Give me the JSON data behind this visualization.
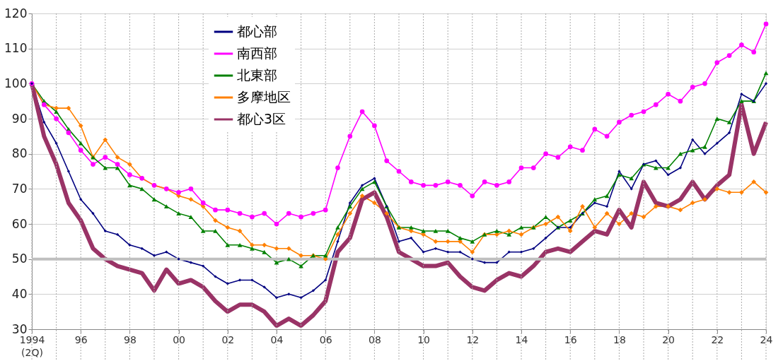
{
  "chart_data": {
    "type": "line",
    "x": [
      1994,
      1994.5,
      1995,
      1995.5,
      1996,
      1996.5,
      1997,
      1997.5,
      1998,
      1998.5,
      1999,
      1999.5,
      2000,
      2000.5,
      2001,
      2001.5,
      2002,
      2002.5,
      2003,
      2003.5,
      2004,
      2004.5,
      2005,
      2005.5,
      2006,
      2006.5,
      2007,
      2007.5,
      2008,
      2008.5,
      2009,
      2009.5,
      2010,
      2010.5,
      2011,
      2011.5,
      2012,
      2012.5,
      2013,
      2013.5,
      2014,
      2014.5,
      2015,
      2015.5,
      2016,
      2016.5,
      2017,
      2017.5,
      2018,
      2018.5,
      2019,
      2019.5,
      2020,
      2020.5,
      2021,
      2021.5,
      2022,
      2022.5,
      2023,
      2023.5,
      2024
    ],
    "series": [
      {
        "name": "都心部",
        "color": "#000080",
        "marker": "diamond",
        "values": [
          100,
          89,
          83,
          75,
          67,
          63,
          58,
          57,
          54,
          53,
          51,
          52,
          50,
          49,
          48,
          45,
          43,
          44,
          44,
          42,
          39,
          40,
          39,
          41,
          44,
          55,
          66,
          71,
          73,
          65,
          55,
          56,
          52,
          53,
          52,
          52,
          50,
          49,
          49,
          52,
          52,
          53,
          56,
          59,
          59,
          63,
          66,
          65,
          75,
          70,
          77,
          78,
          74,
          76,
          84,
          80,
          83,
          86,
          97,
          95,
          100
        ]
      },
      {
        "name": "南西部",
        "color": "#ff00ff",
        "marker": "circle",
        "values": [
          100,
          94,
          90,
          86,
          81,
          77,
          79,
          77,
          74,
          73,
          71,
          70,
          69,
          70,
          66,
          64,
          64,
          63,
          62,
          63,
          60,
          63,
          62,
          63,
          64,
          76,
          85,
          92,
          88,
          78,
          75,
          72,
          71,
          71,
          72,
          71,
          68,
          72,
          71,
          72,
          76,
          76,
          80,
          79,
          82,
          81,
          87,
          85,
          89,
          91,
          92,
          94,
          97,
          95,
          99,
          100,
          106,
          108,
          111,
          109,
          117
        ]
      },
      {
        "name": "北東部",
        "color": "#008000",
        "marker": "triangle",
        "values": [
          100,
          95,
          92,
          87,
          83,
          79,
          76,
          76,
          71,
          70,
          67,
          65,
          63,
          62,
          58,
          58,
          54,
          54,
          53,
          52,
          49,
          50,
          48,
          51,
          51,
          59,
          65,
          70,
          72,
          65,
          59,
          59,
          58,
          58,
          58,
          56,
          55,
          57,
          58,
          57,
          59,
          59,
          62,
          59,
          61,
          63,
          67,
          68,
          74,
          73,
          77,
          76,
          76,
          80,
          81,
          82,
          90,
          89,
          95,
          95,
          103
        ]
      },
      {
        "name": "多摩地区",
        "color": "#ff8000",
        "marker": "diamond",
        "values": [
          100,
          94,
          93,
          93,
          88,
          79,
          84,
          79,
          77,
          73,
          71,
          70,
          68,
          67,
          65,
          61,
          59,
          58,
          54,
          54,
          53,
          53,
          51,
          51,
          50,
          57,
          63,
          68,
          66,
          63,
          59,
          58,
          57,
          55,
          55,
          55,
          52,
          57,
          57,
          58,
          57,
          59,
          60,
          62,
          58,
          65,
          59,
          63,
          60,
          63,
          62,
          65,
          65,
          64,
          66,
          67,
          70,
          69,
          69,
          72,
          69
        ]
      },
      {
        "name": "都心3区",
        "color": "#993366",
        "marker": "none",
        "values": [
          100,
          85,
          77,
          66,
          61,
          53,
          50,
          48,
          47,
          46,
          41,
          47,
          43,
          44,
          42,
          38,
          35,
          37,
          37,
          35,
          31,
          33,
          31,
          34,
          38,
          52,
          56,
          67,
          69,
          62,
          52,
          50,
          48,
          48,
          49,
          45,
          42,
          41,
          44,
          46,
          45,
          48,
          52,
          53,
          52,
          55,
          58,
          57,
          64,
          59,
          72,
          66,
          65,
          67,
          72,
          67,
          71,
          74,
          94,
          80,
          89
        ]
      }
    ],
    "xlim": [
      1994,
      2024
    ],
    "xticks": [
      {
        "value": 1994,
        "label": "1994 (2Q)"
      },
      {
        "value": 1995,
        "label": null
      },
      {
        "value": 1996,
        "label": "96"
      },
      {
        "value": 1997,
        "label": null
      },
      {
        "value": 1998,
        "label": "98"
      },
      {
        "value": 1999,
        "label": null
      },
      {
        "value": 2000,
        "label": "00"
      },
      {
        "value": 2001,
        "label": null
      },
      {
        "value": 2002,
        "label": "02"
      },
      {
        "value": 2003,
        "label": null
      },
      {
        "value": 2004,
        "label": "04"
      },
      {
        "value": 2005,
        "label": null
      },
      {
        "value": 2006,
        "label": "06"
      },
      {
        "value": 2007,
        "label": null
      },
      {
        "value": 2008,
        "label": "08"
      },
      {
        "value": 2009,
        "label": null
      },
      {
        "value": 2010,
        "label": "10"
      },
      {
        "value": 2011,
        "label": null
      },
      {
        "value": 2012,
        "label": "12"
      },
      {
        "value": 2013,
        "label": null
      },
      {
        "value": 2014,
        "label": "14"
      },
      {
        "value": 2015,
        "label": null
      },
      {
        "value": 2016,
        "label": "16"
      },
      {
        "value": 2017,
        "label": null
      },
      {
        "value": 2018,
        "label": "18"
      },
      {
        "value": 2019,
        "label": null
      },
      {
        "value": 2020,
        "label": "20"
      },
      {
        "value": 2021,
        "label": null
      },
      {
        "value": 2022,
        "label": "22"
      },
      {
        "value": 2023,
        "label": null
      },
      {
        "value": 2024,
        "label": "24"
      }
    ],
    "ylim": [
      30,
      120
    ],
    "yticks": [
      30,
      40,
      50,
      60,
      70,
      80,
      90,
      100,
      110,
      120
    ],
    "ref_lines": [
      {
        "axis": "y",
        "value": 50,
        "color": "#bfbfbf"
      }
    ],
    "grid": true,
    "legend": "top left",
    "line_style": "solid"
  }
}
